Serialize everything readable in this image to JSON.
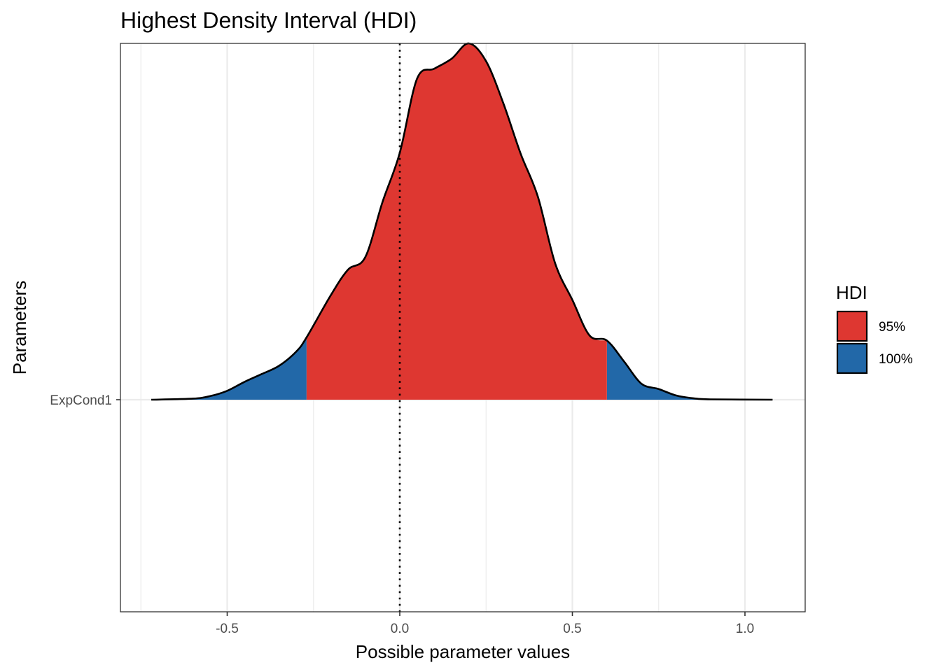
{
  "chart_data": {
    "type": "area",
    "title": "Highest Density Interval (HDI)",
    "xlabel": "Possible parameter values",
    "ylabel": "Parameters",
    "xlim": [
      -0.8,
      1.18
    ],
    "x_ticks": [
      -0.5,
      0.0,
      0.5,
      1.0
    ],
    "x_tick_labels": [
      "-0.5",
      "0.0",
      "0.5",
      "1.0"
    ],
    "y_categories": [
      "ExpCond1"
    ],
    "reference_line": {
      "x": 0.0,
      "style": "dotted"
    },
    "legend": {
      "title": "HDI",
      "position": "right",
      "entries": [
        {
          "label": "95%",
          "color": "#de3731"
        },
        {
          "label": "100%",
          "color": "#2268a8"
        }
      ]
    },
    "hdi_95": [
      -0.27,
      0.6
    ],
    "density_curve": {
      "x": [
        -0.72,
        -0.6,
        -0.55,
        -0.5,
        -0.45,
        -0.4,
        -0.35,
        -0.3,
        -0.27,
        -0.2,
        -0.15,
        -0.1,
        -0.05,
        0.0,
        0.05,
        0.1,
        0.15,
        0.2,
        0.25,
        0.3,
        0.35,
        0.4,
        0.45,
        0.5,
        0.55,
        0.6,
        0.65,
        0.7,
        0.75,
        0.8,
        0.85,
        0.9,
        1.08
      ],
      "y": [
        0.0,
        0.003,
        0.01,
        0.025,
        0.05,
        0.072,
        0.095,
        0.135,
        0.175,
        0.293,
        0.365,
        0.4,
        0.555,
        0.693,
        0.901,
        0.929,
        0.957,
        1.0,
        0.95,
        0.832,
        0.691,
        0.57,
        0.383,
        0.28,
        0.18,
        0.166,
        0.107,
        0.045,
        0.03,
        0.012,
        0.004,
        0.001,
        0.0
      ]
    },
    "grid": true
  }
}
